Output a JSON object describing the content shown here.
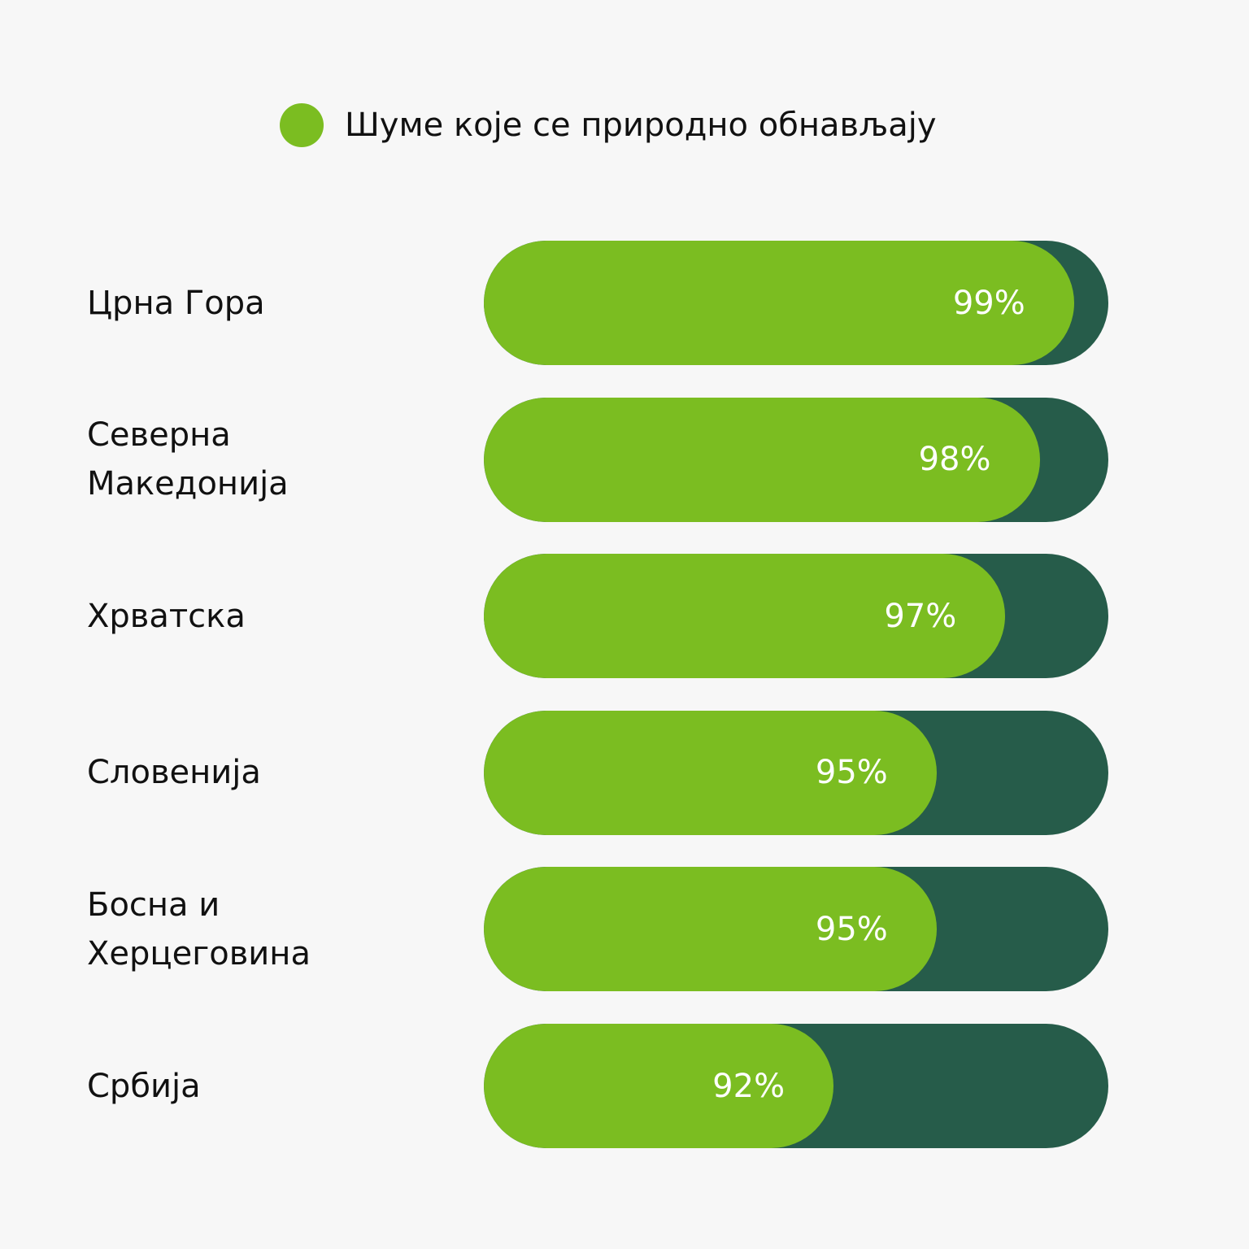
{
  "legend": {
    "label": "Шуме које се природно обнављају"
  },
  "colors": {
    "fill": "#7bbd21",
    "track": "#265c4a",
    "background": "#f7f7f7",
    "value_text": "#ffffff"
  },
  "chart_data": {
    "type": "bar",
    "orientation": "horizontal",
    "categories": [
      "Црна Гора",
      "Северна Македонија",
      "Хрватска",
      "Словенија",
      "Босна и Херцеговина",
      "Србија"
    ],
    "category_lines": [
      [
        "Црна Гора"
      ],
      [
        "Северна",
        "Македонија"
      ],
      [
        "Хрватска"
      ],
      [
        "Словенија"
      ],
      [
        "Босна и",
        "Херцеговина"
      ],
      [
        "Србија"
      ]
    ],
    "series": [
      {
        "name": "Шуме које се природно обнављају",
        "values": [
          99,
          98,
          97,
          95,
          95,
          92
        ]
      }
    ],
    "value_labels": [
      "99%",
      "98%",
      "97%",
      "95%",
      "95%",
      "92%"
    ],
    "xlim": [
      0,
      100
    ],
    "unit": "%",
    "legend_position": "top-center",
    "grid": false
  }
}
